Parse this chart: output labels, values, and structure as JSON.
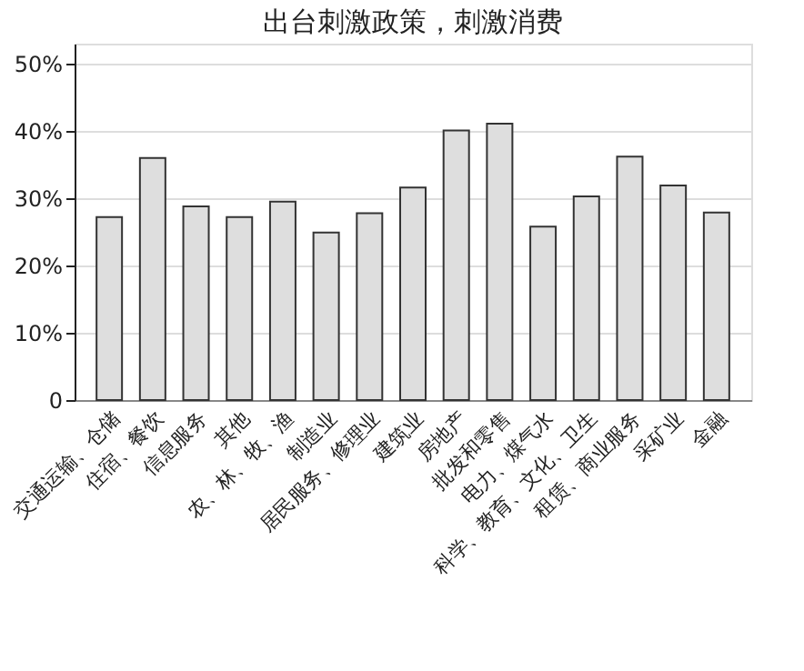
{
  "chart_data": {
    "type": "bar",
    "title": "出台刺激政策，刺激消费",
    "categories": [
      "交通运输、仓储",
      "住宿、餐饮",
      "信息服务",
      "其他",
      "农、林、牧、渔",
      "制造业",
      "居民服务、修理业",
      "建筑业",
      "房地产",
      "批发和零售",
      "电力、煤气水",
      "科学、教育、文化、卫生",
      "租赁、商业服务",
      "采矿业",
      "金融"
    ],
    "values": [
      27.2,
      36.0,
      28.8,
      27.2,
      29.5,
      24.9,
      27.8,
      31.6,
      40.1,
      41.1,
      25.8,
      30.3,
      36.2,
      31.9,
      27.9
    ],
    "color": "#dedede",
    "ylim": [
      0,
      53
    ],
    "yticks": [
      0,
      {
        "value": 10,
        "label": "10%"
      },
      {
        "value": 20,
        "label": "20%"
      },
      {
        "value": 30,
        "label": "30%"
      },
      {
        "value": 40,
        "label": "40%"
      },
      {
        "value": 50,
        "label": "50%"
      }
    ],
    "grid": "y"
  }
}
